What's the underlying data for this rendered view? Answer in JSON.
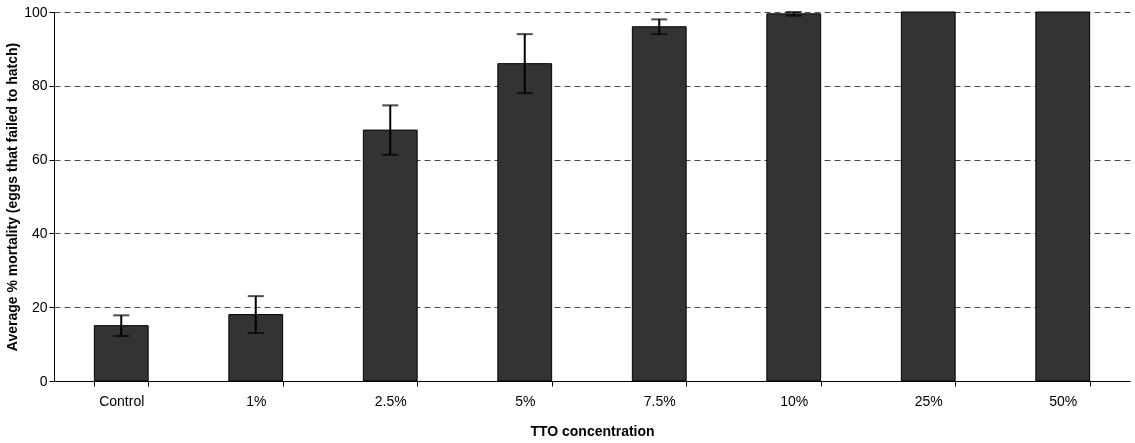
{
  "chart_data": {
    "type": "bar",
    "xlabel": "TTO concentration",
    "ylabel": "Average % mortality (eggs that failed to hatch)",
    "categories": [
      "Control",
      "1%",
      "2.5%",
      "5%",
      "7.5%",
      "10%",
      "25%",
      "50%"
    ],
    "values": [
      15,
      18,
      68,
      86,
      96,
      99.5,
      100,
      100
    ],
    "errors": [
      2.8,
      5,
      6.7,
      8,
      2,
      0.5,
      null,
      null
    ],
    "color": "#333333",
    "ylim": [
      0,
      100
    ],
    "yticks": [
      0,
      20,
      40,
      60,
      80,
      100
    ],
    "grid": "y"
  }
}
